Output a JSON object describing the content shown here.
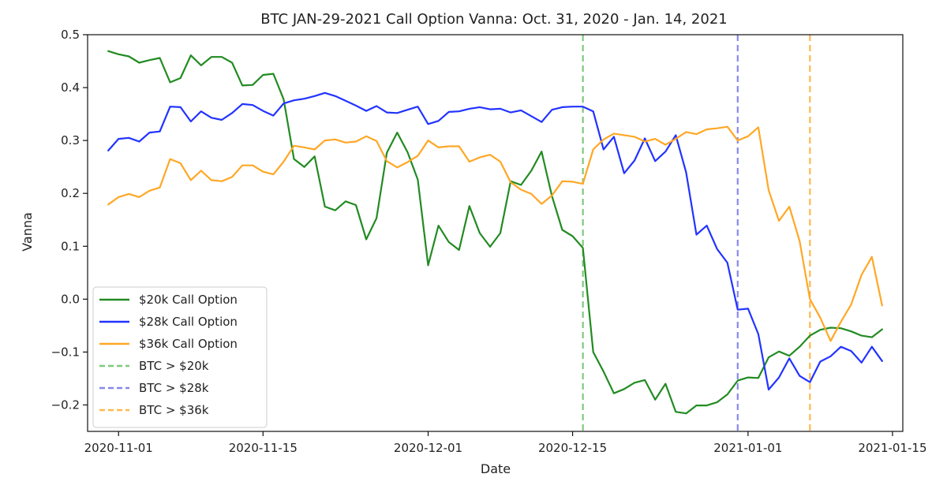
{
  "chart_data": {
    "type": "line",
    "title": "BTC JAN-29-2021 Call Option Vanna: Oct. 31, 2020 - Jan. 14, 2021",
    "xlabel": "Date",
    "ylabel": "Vanna",
    "xlim": [
      "2020-10-29",
      "2021-01-16"
    ],
    "ylim": [
      -0.25,
      0.5
    ],
    "x_ticks": [
      "2020-11-01",
      "2020-11-15",
      "2020-12-01",
      "2020-12-15",
      "2021-01-01",
      "2021-01-15"
    ],
    "y_ticks": [
      0.5,
      0.4,
      0.3,
      0.2,
      0.1,
      0.0,
      -0.1,
      -0.2
    ],
    "y_tick_labels": [
      "0.5",
      "0.4",
      "0.3",
      "0.2",
      "0.1",
      "0.0",
      "−0.1",
      "−0.2"
    ],
    "grid": false,
    "legend_position": "lower-left",
    "x": [
      "2020-10-31",
      "2020-11-01",
      "2020-11-02",
      "2020-11-03",
      "2020-11-04",
      "2020-11-05",
      "2020-11-06",
      "2020-11-07",
      "2020-11-08",
      "2020-11-09",
      "2020-11-10",
      "2020-11-11",
      "2020-11-12",
      "2020-11-13",
      "2020-11-14",
      "2020-11-15",
      "2020-11-16",
      "2020-11-17",
      "2020-11-18",
      "2020-11-19",
      "2020-11-20",
      "2020-11-21",
      "2020-11-22",
      "2020-11-23",
      "2020-11-24",
      "2020-11-25",
      "2020-11-26",
      "2020-11-27",
      "2020-11-28",
      "2020-11-29",
      "2020-11-30",
      "2020-12-01",
      "2020-12-02",
      "2020-12-03",
      "2020-12-04",
      "2020-12-05",
      "2020-12-06",
      "2020-12-07",
      "2020-12-08",
      "2020-12-09",
      "2020-12-10",
      "2020-12-11",
      "2020-12-12",
      "2020-12-13",
      "2020-12-14",
      "2020-12-15",
      "2020-12-16",
      "2020-12-17",
      "2020-12-18",
      "2020-12-19",
      "2020-12-20",
      "2020-12-21",
      "2020-12-22",
      "2020-12-23",
      "2020-12-24",
      "2020-12-25",
      "2020-12-26",
      "2020-12-27",
      "2020-12-28",
      "2020-12-29",
      "2020-12-30",
      "2020-12-31",
      "2021-01-01",
      "2021-01-02",
      "2021-01-03",
      "2021-01-04",
      "2021-01-05",
      "2021-01-06",
      "2021-01-07",
      "2021-01-08",
      "2021-01-09",
      "2021-01-10",
      "2021-01-11",
      "2021-01-12",
      "2021-01-13",
      "2021-01-14"
    ],
    "series": [
      {
        "name": "$20k Call Option",
        "color": "#228B22",
        "style": "solid",
        "values": [
          0.469,
          0.463,
          0.459,
          0.447,
          0.452,
          0.456,
          0.41,
          0.418,
          0.461,
          0.442,
          0.458,
          0.458,
          0.447,
          0.404,
          0.405,
          0.424,
          0.426,
          0.378,
          0.265,
          0.25,
          0.27,
          0.175,
          0.168,
          0.185,
          0.178,
          0.113,
          0.153,
          0.277,
          0.315,
          0.278,
          0.226,
          0.064,
          0.139,
          0.108,
          0.093,
          0.176,
          0.125,
          0.099,
          0.125,
          0.223,
          0.216,
          0.243,
          0.279,
          0.195,
          0.131,
          0.119,
          0.097,
          -0.1,
          -0.137,
          -0.178,
          -0.17,
          -0.158,
          -0.153,
          -0.19,
          -0.16,
          -0.213,
          -0.216,
          -0.201,
          -0.201,
          -0.195,
          -0.18,
          -0.154,
          -0.148,
          -0.149,
          -0.11,
          -0.099,
          -0.107,
          -0.09,
          -0.069,
          -0.058,
          -0.054,
          -0.055,
          -0.061,
          -0.069,
          -0.072,
          -0.057
        ]
      },
      {
        "name": "$28k Call Option",
        "color": "#2233FF",
        "style": "solid",
        "values": [
          0.281,
          0.303,
          0.305,
          0.298,
          0.315,
          0.317,
          0.364,
          0.363,
          0.336,
          0.355,
          0.343,
          0.339,
          0.352,
          0.369,
          0.367,
          0.356,
          0.347,
          0.37,
          0.376,
          0.379,
          0.384,
          0.39,
          0.384,
          0.375,
          0.366,
          0.356,
          0.365,
          0.353,
          0.352,
          0.358,
          0.364,
          0.331,
          0.337,
          0.354,
          0.355,
          0.36,
          0.363,
          0.359,
          0.36,
          0.353,
          0.357,
          0.346,
          0.335,
          0.358,
          0.363,
          0.364,
          0.364,
          0.355,
          0.283,
          0.307,
          0.238,
          0.262,
          0.304,
          0.261,
          0.279,
          0.31,
          0.24,
          0.122,
          0.139,
          0.095,
          0.069,
          -0.02,
          -0.018,
          -0.066,
          -0.171,
          -0.148,
          -0.112,
          -0.145,
          -0.157,
          -0.118,
          -0.108,
          -0.09,
          -0.098,
          -0.12,
          -0.09,
          -0.117
        ]
      },
      {
        "name": "$36k Call Option",
        "color": "#FFA726",
        "style": "solid",
        "values": [
          0.179,
          0.193,
          0.199,
          0.193,
          0.205,
          0.211,
          0.265,
          0.257,
          0.225,
          0.243,
          0.225,
          0.223,
          0.231,
          0.253,
          0.253,
          0.241,
          0.236,
          0.26,
          0.29,
          0.287,
          0.283,
          0.3,
          0.302,
          0.296,
          0.298,
          0.308,
          0.299,
          0.261,
          0.249,
          0.259,
          0.271,
          0.3,
          0.287,
          0.289,
          0.289,
          0.26,
          0.268,
          0.273,
          0.26,
          0.221,
          0.207,
          0.199,
          0.18,
          0.196,
          0.223,
          0.222,
          0.218,
          0.283,
          0.302,
          0.313,
          0.31,
          0.307,
          0.298,
          0.303,
          0.292,
          0.303,
          0.316,
          0.312,
          0.321,
          0.323,
          0.326,
          0.3,
          0.308,
          0.325,
          0.206,
          0.148,
          0.175,
          0.11,
          0.0,
          -0.035,
          -0.079,
          -0.043,
          -0.01,
          0.046,
          0.08,
          -0.012
        ]
      }
    ],
    "annotations": [
      {
        "label": "BTC > $20k",
        "x": "2020-12-16",
        "color": "#7FC97F",
        "style": "dashed"
      },
      {
        "label": "BTC > $28k",
        "x": "2020-12-31",
        "color": "#8888EE",
        "style": "dashed"
      },
      {
        "label": "BTC > $36k",
        "x": "2021-01-07",
        "color": "#FFB84D",
        "style": "dashed"
      }
    ]
  }
}
